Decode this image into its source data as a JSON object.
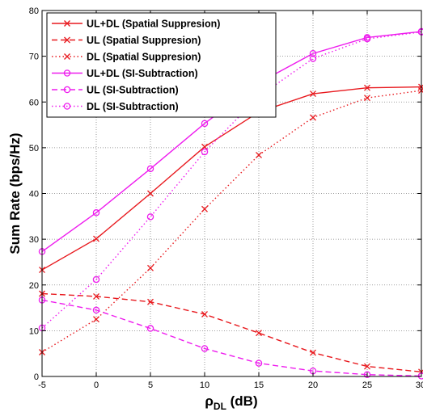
{
  "chart_data": {
    "type": "line",
    "title": "",
    "xlabel_main": "ρ",
    "xlabel_sub": "DL",
    "xlabel_unit": " (dB)",
    "ylabel": "Sum Rate (bps/Hz)",
    "xlim": [
      -5,
      30
    ],
    "ylim": [
      0,
      80
    ],
    "x_ticks": [
      -5,
      0,
      5,
      10,
      15,
      20,
      25,
      30
    ],
    "y_ticks": [
      0,
      10,
      20,
      30,
      40,
      50,
      60,
      70,
      80
    ],
    "x_tick_labels": [
      "-5",
      "0",
      "5",
      "10",
      "15",
      "20",
      "25",
      "30"
    ],
    "y_tick_labels": [
      "0",
      "10",
      "20",
      "30",
      "40",
      "50",
      "60",
      "70",
      "80"
    ],
    "grid": true,
    "legend_position": "top-left",
    "x": [
      -5,
      0,
      5,
      10,
      15,
      20,
      25,
      30
    ],
    "series": [
      {
        "name": "UL+DL (Spatial Suppresion)",
        "values": [
          23.3,
          30.1,
          40.0,
          50.2,
          57.8,
          61.8,
          63.1,
          63.3
        ],
        "color": "#e8191e",
        "dash": "solid",
        "marker": "x"
      },
      {
        "name": "UL (Spatial Suppresion)",
        "values": [
          18.1,
          17.5,
          16.3,
          13.6,
          9.5,
          5.2,
          2.2,
          1.0
        ],
        "color": "#e8191e",
        "dash": "dashed",
        "marker": "x"
      },
      {
        "name": "DL (Spatial Suppresion)",
        "values": [
          5.3,
          12.5,
          23.7,
          36.6,
          48.4,
          56.6,
          60.9,
          62.5
        ],
        "color": "#e8191e",
        "dash": "dotted",
        "marker": "x"
      },
      {
        "name": "UL+DL (SI-Subtraction)",
        "values": [
          27.3,
          35.8,
          45.4,
          55.3,
          64.2,
          70.6,
          74.1,
          75.4
        ],
        "color": "#ee1cee",
        "dash": "solid",
        "marker": "o"
      },
      {
        "name": "UL (SI-Subtraction)",
        "values": [
          16.7,
          14.5,
          10.5,
          6.1,
          2.9,
          1.2,
          0.4,
          0.1
        ],
        "color": "#ee1cee",
        "dash": "dashed",
        "marker": "o"
      },
      {
        "name": "DL (SI-Subtraction)",
        "values": [
          10.6,
          21.2,
          34.9,
          49.1,
          61.2,
          69.5,
          73.8,
          75.3
        ],
        "color": "#ee1cee",
        "dash": "dotted",
        "marker": "o"
      }
    ]
  }
}
